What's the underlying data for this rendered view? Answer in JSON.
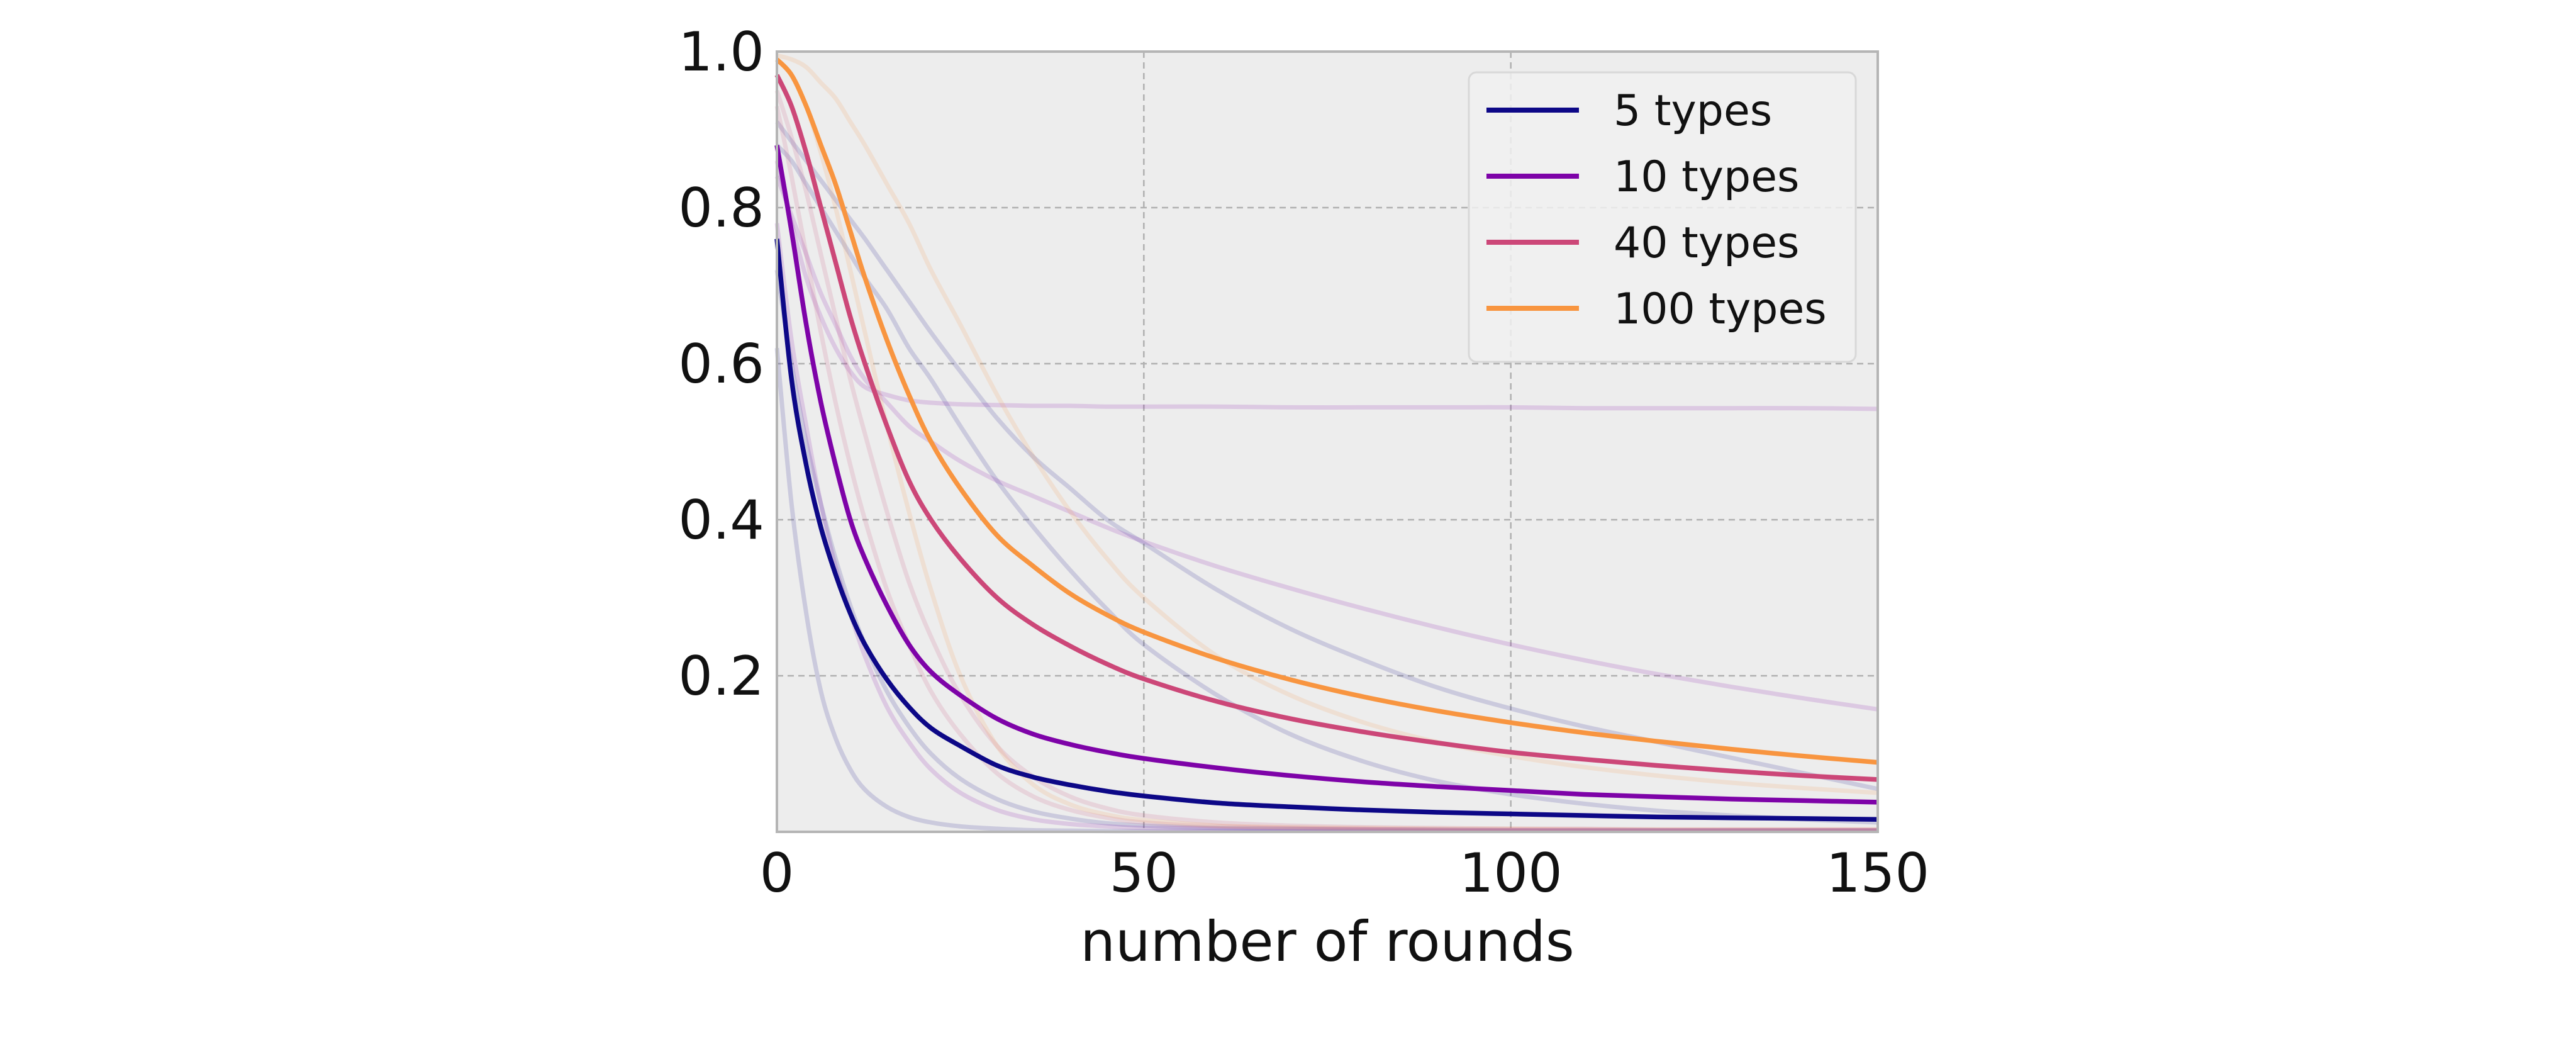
{
  "chart_data": {
    "type": "line",
    "title": "",
    "xlabel": "number of rounds",
    "ylabel": "",
    "xlim": [
      0,
      150
    ],
    "ylim": [
      0,
      1.0
    ],
    "xticks": [
      0,
      50,
      100,
      150
    ],
    "xtick_labels": [
      "0",
      "50",
      "100",
      "150"
    ],
    "yticks": [
      0.2,
      0.4,
      0.6,
      0.8,
      1.0
    ],
    "ytick_labels": [
      "0.2",
      "0.4",
      "0.6",
      "0.8",
      "1.0"
    ],
    "grid": true,
    "background_color": "#ededed",
    "legend_position": "top-right",
    "x": [
      0,
      2,
      4,
      6,
      8,
      10,
      12,
      15,
      18,
      21,
      25,
      30,
      35,
      40,
      45,
      50,
      60,
      70,
      80,
      90,
      100,
      110,
      120,
      130,
      140,
      150
    ],
    "series": [
      {
        "name": "5 types",
        "color": "#0d0887",
        "values": [
          0.76,
          0.58,
          0.47,
          0.39,
          0.33,
          0.28,
          0.24,
          0.195,
          0.16,
          0.133,
          0.11,
          0.085,
          0.07,
          0.06,
          0.052,
          0.046,
          0.037,
          0.032,
          0.028,
          0.025,
          0.023,
          0.021,
          0.019,
          0.018,
          0.017,
          0.016
        ]
      },
      {
        "name": "10 types",
        "color": "#7e03a8",
        "values": [
          0.88,
          0.77,
          0.65,
          0.55,
          0.47,
          0.4,
          0.35,
          0.29,
          0.24,
          0.205,
          0.175,
          0.145,
          0.125,
          0.112,
          0.102,
          0.094,
          0.082,
          0.072,
          0.064,
          0.058,
          0.053,
          0.048,
          0.045,
          0.042,
          0.04,
          0.038
        ]
      },
      {
        "name": "40 types",
        "color": "#cc4778",
        "values": [
          0.97,
          0.93,
          0.87,
          0.8,
          0.73,
          0.66,
          0.6,
          0.52,
          0.45,
          0.4,
          0.35,
          0.3,
          0.265,
          0.238,
          0.215,
          0.196,
          0.167,
          0.145,
          0.128,
          0.114,
          0.102,
          0.093,
          0.085,
          0.078,
          0.072,
          0.067
        ]
      },
      {
        "name": "100 types",
        "color": "#f89540",
        "values": [
          0.99,
          0.97,
          0.93,
          0.88,
          0.83,
          0.77,
          0.71,
          0.63,
          0.56,
          0.5,
          0.44,
          0.38,
          0.34,
          0.305,
          0.278,
          0.256,
          0.222,
          0.195,
          0.173,
          0.155,
          0.14,
          0.127,
          0.116,
          0.106,
          0.097,
          0.089
        ]
      }
    ],
    "faded_series": [
      {
        "color": "#0d0887",
        "values": [
          0.62,
          0.42,
          0.28,
          0.18,
          0.12,
          0.08,
          0.054,
          0.032,
          0.019,
          0.012,
          0.007,
          0.004,
          0.002,
          0.0015,
          0.001,
          0.001,
          0.001,
          0.001,
          0.001,
          0.001,
          0.001,
          0.001,
          0.001,
          0.001,
          0.001,
          0.001
        ]
      },
      {
        "color": "#0d0887",
        "values": [
          0.72,
          0.6,
          0.5,
          0.42,
          0.35,
          0.29,
          0.24,
          0.18,
          0.135,
          0.1,
          0.068,
          0.042,
          0.026,
          0.017,
          0.011,
          0.008,
          0.005,
          0.004,
          0.003,
          0.003,
          0.002,
          0.002,
          0.002,
          0.002,
          0.002,
          0.002
        ]
      },
      {
        "color": "#0d0887",
        "values": [
          0.91,
          0.885,
          0.86,
          0.835,
          0.81,
          0.785,
          0.76,
          0.72,
          0.68,
          0.64,
          0.59,
          0.53,
          0.48,
          0.44,
          0.4,
          0.37,
          0.31,
          0.26,
          0.22,
          0.185,
          0.158,
          0.135,
          0.115,
          0.095,
          0.075,
          0.055
        ]
      },
      {
        "color": "#0d0887",
        "values": [
          0.88,
          0.86,
          0.83,
          0.8,
          0.77,
          0.74,
          0.71,
          0.67,
          0.62,
          0.58,
          0.52,
          0.45,
          0.39,
          0.335,
          0.285,
          0.24,
          0.175,
          0.125,
          0.09,
          0.065,
          0.048,
          0.036,
          0.027,
          0.021,
          0.016,
          0.012
        ]
      },
      {
        "color": "#7e03a8",
        "values": [
          0.86,
          0.78,
          0.71,
          0.66,
          0.62,
          0.59,
          0.57,
          0.56,
          0.553,
          0.55,
          0.548,
          0.547,
          0.546,
          0.546,
          0.545,
          0.545,
          0.545,
          0.544,
          0.544,
          0.544,
          0.544,
          0.543,
          0.543,
          0.543,
          0.543,
          0.542
        ]
      },
      {
        "color": "#7e03a8",
        "values": [
          0.84,
          0.79,
          0.74,
          0.69,
          0.65,
          0.61,
          0.58,
          0.55,
          0.52,
          0.5,
          0.475,
          0.45,
          0.43,
          0.41,
          0.39,
          0.372,
          0.34,
          0.312,
          0.286,
          0.262,
          0.24,
          0.22,
          0.202,
          0.186,
          0.171,
          0.157
        ]
      },
      {
        "color": "#7e03a8",
        "values": [
          0.78,
          0.63,
          0.52,
          0.42,
          0.34,
          0.28,
          0.225,
          0.16,
          0.115,
          0.08,
          0.05,
          0.028,
          0.016,
          0.01,
          0.007,
          0.005,
          0.004,
          0.003,
          0.003,
          0.002,
          0.002,
          0.002,
          0.002,
          0.002,
          0.002,
          0.002
        ]
      },
      {
        "color": "#cc4778",
        "values": [
          0.95,
          0.89,
          0.82,
          0.74,
          0.66,
          0.58,
          0.51,
          0.41,
          0.32,
          0.25,
          0.175,
          0.11,
          0.07,
          0.045,
          0.03,
          0.021,
          0.012,
          0.008,
          0.006,
          0.005,
          0.004,
          0.004,
          0.003,
          0.003,
          0.003,
          0.003
        ]
      },
      {
        "color": "#cc4778",
        "values": [
          0.93,
          0.84,
          0.74,
          0.64,
          0.55,
          0.47,
          0.4,
          0.31,
          0.24,
          0.18,
          0.125,
          0.075,
          0.045,
          0.028,
          0.018,
          0.012,
          0.007,
          0.005,
          0.004,
          0.003,
          0.003,
          0.003,
          0.002,
          0.002,
          0.002,
          0.002
        ]
      },
      {
        "color": "#f89540",
        "values": [
          0.995,
          0.99,
          0.98,
          0.96,
          0.94,
          0.91,
          0.88,
          0.83,
          0.78,
          0.72,
          0.65,
          0.56,
          0.48,
          0.41,
          0.35,
          0.3,
          0.225,
          0.175,
          0.14,
          0.115,
          0.097,
          0.083,
          0.072,
          0.063,
          0.056,
          0.05
        ]
      },
      {
        "color": "#f89540",
        "values": [
          0.99,
          0.97,
          0.93,
          0.87,
          0.8,
          0.72,
          0.64,
          0.52,
          0.41,
          0.31,
          0.2,
          0.11,
          0.06,
          0.035,
          0.022,
          0.015,
          0.008,
          0.006,
          0.005,
          0.004,
          0.004,
          0.003,
          0.003,
          0.003,
          0.003,
          0.003
        ]
      }
    ]
  }
}
